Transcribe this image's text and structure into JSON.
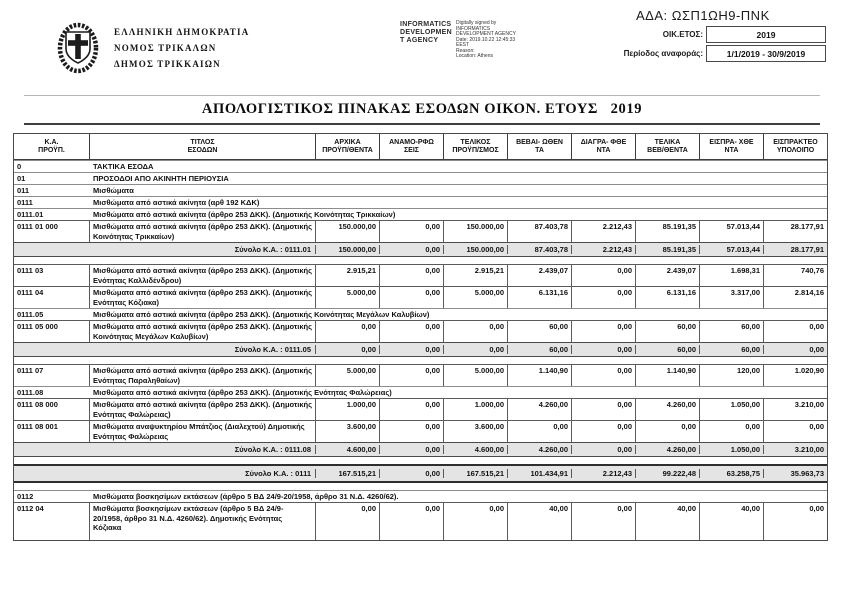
{
  "header": {
    "org_lines": [
      "ΕΛΛΗΝΙΚΗ ΔΗΜΟΚΡΑΤΙΑ",
      "ΝΟΜΟΣ ΤΡΙΚΑΛΩΝ",
      "ΔΗΜΟΣ ΤΡΙΚΚΑΙΩΝ"
    ],
    "ida_agency_name": "INFORMATICS\nDEVELOPMEN\nT AGENCY",
    "digital_signature": "Digitally signed by\nINFORMATICS\nDEVELOPMENT AGENCY\nDate: 2019.10.22 12:45:33\nEEST\nReason:\nLocation: Athens",
    "ada": "ΑΔΑ: ΩΣΠ1ΩΗ9-ΠΝΚ",
    "fiscal_year_label": "ΟΙΚ.ΕΤΟΣ:",
    "fiscal_year_value": "2019",
    "period_label": "Περίοδος αναφοράς:",
    "period_value": "1/1/2019 - 30/9/2019"
  },
  "title": "ΑΠΟΛΟΓΙΣΤΙΚΟΣ ΠΙΝΑΚΑΣ ΕΣΟΔΩΝ ΟΙΚΟΝ. ΕΤΟΥΣ   2019",
  "colors": {
    "total_row_bg": "#e4e4e4"
  },
  "table": {
    "columns": [
      "Κ.Α.\nΠΡΟΫΠ.",
      "ΤΙΤΛΟΣ\nΕΣΟΔΩΝ",
      "ΑΡΧΙΚΑ\nΠΡΟΫΠ/ΘΕΝΤΑ",
      "ΑΝΑΜΟ-ΡΦΩ\nΣΕΙΣ",
      "ΤΕΛΙΚΟΣ\nΠΡΟΫΠ/ΣΜΟΣ",
      "ΒΕΒΑΙ- ΩΘΕΝ\nΤΑ",
      "ΔΙΑΓΡΑ- ΦΘΕ\nΝΤΑ",
      "ΤΕΛΙΚΑ\nΒΕΒ/ΘΕΝΤΑ",
      "ΕΙΣΠΡΑ- ΧΘΕ\nΝΤΑ",
      "ΕΙΣΠΡΑΚΤΕΟ\nΥΠΟΛΟΙΠΟ"
    ],
    "rows": [
      {
        "type": "section",
        "code": "0",
        "title": "ΤΑΚΤΙΚΑ ΕΣΟΔΑ"
      },
      {
        "type": "section",
        "code": "01",
        "title": "ΠΡΟΣΟΔΟΙ ΑΠΟ ΑΚΙΝΗΤΗ ΠΕΡΙΟΥΣΙΑ"
      },
      {
        "type": "section",
        "code": "011",
        "title": "Μισθώματα"
      },
      {
        "type": "section",
        "code": "0111",
        "title": "Μισθώματα από αστικά ακίνητα (αρθ 192 ΚΔΚ)"
      },
      {
        "type": "section",
        "code": "0111.01",
        "title": "Μισθώματα από αστικά ακίνητα (άρθρο 253 ΔΚΚ). (Δημοτικής Κοινότητας Τρικκαίων)"
      },
      {
        "type": "leaf",
        "code": "0111 01 000",
        "title": "Μισθώματα από αστικά ακίνητα (άρθρο 253 ΔΚΚ). (Δημοτικής Κοινότητας Τρικκαίων)",
        "values": [
          "150.000,00",
          "0,00",
          "150.000,00",
          "87.403,78",
          "2.212,43",
          "85.191,35",
          "57.013,44",
          "28.177,91"
        ]
      },
      {
        "type": "total",
        "label": "Σύνολο Κ.Α. : 0111.01",
        "values": [
          "150.000,00",
          "0,00",
          "150.000,00",
          "87.403,78",
          "2.212,43",
          "85.191,35",
          "57.013,44",
          "28.177,91"
        ]
      },
      {
        "type": "leaf",
        "code": "0111 03",
        "title": "Μισθώματα από αστικά ακίνητα (άρθρο 253 ΔΚΚ). (Δημοτικής Ενότητας Καλλιδένδρου)",
        "values": [
          "2.915,21",
          "0,00",
          "2.915,21",
          "2.439,07",
          "0,00",
          "2.439,07",
          "1.698,31",
          "740,76"
        ]
      },
      {
        "type": "leaf",
        "code": "0111 04",
        "title": "Μισθώματα από αστικά ακίνητα (άρθρο 253 ΔΚΚ). (Δημοτικής Ενότητας Κόζιακα)",
        "values": [
          "5.000,00",
          "0,00",
          "5.000,00",
          "6.131,16",
          "0,00",
          "6.131,16",
          "3.317,00",
          "2.814,16"
        ]
      },
      {
        "type": "section",
        "code": "0111.05",
        "title": "Μισθώματα από αστικά ακίνητα (άρθρο 253 ΔΚΚ). (Δημοτικής Κοινότητας Μεγάλων Καλυβίων)"
      },
      {
        "type": "leaf",
        "code": "0111 05 000",
        "title": "Μισθώματα από αστικά ακίνητα (άρθρο 253 ΔΚΚ). (Δημοτικής Κοινότητας Μεγάλων Καλυβίων)",
        "values": [
          "0,00",
          "0,00",
          "0,00",
          "60,00",
          "0,00",
          "60,00",
          "60,00",
          "0,00"
        ]
      },
      {
        "type": "total",
        "label": "Σύνολο Κ.Α. : 0111.05",
        "values": [
          "0,00",
          "0,00",
          "0,00",
          "60,00",
          "0,00",
          "60,00",
          "60,00",
          "0,00"
        ]
      },
      {
        "type": "leaf",
        "code": "0111 07",
        "title": "Μισθώματα από αστικά ακίνητα (άρθρο 253 ΔΚΚ). (Δημοτικής Ενότητας Παραληθαίων)",
        "values": [
          "5.000,00",
          "0,00",
          "5.000,00",
          "1.140,90",
          "0,00",
          "1.140,90",
          "120,00",
          "1.020,90"
        ]
      },
      {
        "type": "section",
        "code": "0111.08",
        "title": "Μισθώματα από αστικά ακίνητα (άρθρο 253 ΔΚΚ). (Δημοτικής Ενότητας Φαλώρειας)"
      },
      {
        "type": "leaf",
        "code": "0111 08 000",
        "title": "Μισθώματα από αστικά ακίνητα (άρθρο 253 ΔΚΚ). (Δημοτικής Ενότητας Φαλώρειας)",
        "values": [
          "1.000,00",
          "0,00",
          "1.000,00",
          "4.260,00",
          "0,00",
          "4.260,00",
          "1.050,00",
          "3.210,00"
        ]
      },
      {
        "type": "leaf",
        "code": "0111 08 001",
        "title": "Μισθώματα αναψυκτηρίου Μπάτζιος (Διαλεχτού) Δημοτικής Ενότητας Φαλώρειας",
        "values": [
          "3.600,00",
          "0,00",
          "3.600,00",
          "0,00",
          "0,00",
          "0,00",
          "0,00",
          "0,00"
        ]
      },
      {
        "type": "total",
        "label": "Σύνολο Κ.Α. : 0111.08",
        "values": [
          "4.600,00",
          "0,00",
          "4.600,00",
          "4.260,00",
          "0,00",
          "4.260,00",
          "1.050,00",
          "3.210,00"
        ]
      },
      {
        "type": "grandtotal",
        "label": "Σύνολο Κ.Α. : 0111",
        "values": [
          "167.515,21",
          "0,00",
          "167.515,21",
          "101.434,91",
          "2.212,43",
          "99.222,48",
          "63.258,75",
          "35.963,73"
        ]
      },
      {
        "type": "section",
        "code": "0112",
        "title": "Μισθώματα βοσκησίμων εκτάσεων (άρθρο 5 ΒΔ 24/9-20/1958, άρθρο 31 Ν.Δ. 4260/62)."
      },
      {
        "type": "leaf",
        "code": "0112 04",
        "title": "Μισθώματα βοσκησίμων εκτάσεων (άρθρο 5 ΒΔ 24/9-20/1958, άρθρο 31 Ν.Δ. 4260/62). Δημοτικής Ενότητας Κόζιακα",
        "values": [
          "0,00",
          "0,00",
          "0,00",
          "40,00",
          "0,00",
          "40,00",
          "40,00",
          "0,00"
        ]
      }
    ]
  }
}
